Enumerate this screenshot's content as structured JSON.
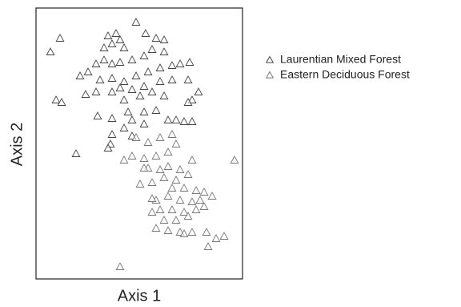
{
  "chart_data": {
    "type": "scatter",
    "xlabel": "Axis 1",
    "ylabel": "Axis 2",
    "xlim": [
      0,
      258
    ],
    "ylim": [
      0,
      338
    ],
    "legend": "right",
    "series": [
      {
        "name": "Laurentian Mixed Forest",
        "color": "#444444",
        "x": [
          125,
          30,
          18,
          90,
          100,
          105,
          95,
          85,
          110,
          137,
          150,
          160,
          160,
          145,
          135,
          120,
          105,
          95,
          85,
          75,
          65,
          55,
          80,
          95,
          110,
          125,
          140,
          155,
          170,
          180,
          192,
          190,
          170,
          155,
          135,
          120,
          105,
          95,
          75,
          62,
          25,
          32,
          110,
          130,
          145,
          160,
          195,
          203,
          190,
          115,
          135,
          150,
          165,
          175,
          185,
          195,
          77,
          95,
          120,
          135,
          110,
          120,
          95,
          50,
          93,
          90
        ],
        "values": [
          320,
          300,
          283,
          303,
          306,
          298,
          293,
          288,
          288,
          306,
          300,
          298,
          283,
          286,
          278,
          273,
          270,
          268,
          273,
          268,
          258,
          253,
          248,
          250,
          246,
          253,
          258,
          263,
          266,
          268,
          270,
          248,
          248,
          246,
          240,
          236,
          238,
          233,
          233,
          230,
          223,
          220,
          223,
          228,
          233,
          228,
          223,
          233,
          220,
          208,
          208,
          210,
          198,
          198,
          196,
          196,
          203,
          200,
          198,
          193,
          188,
          178,
          180,
          156,
          168,
          163
        ]
      },
      {
        "name": "Eastern Deciduous Forest",
        "color": "#777777",
        "x": [
          125,
          140,
          155,
          170,
          175,
          165,
          150,
          135,
          120,
          110,
          140,
          155,
          165,
          180,
          190,
          175,
          160,
          145,
          170,
          185,
          200,
          210,
          220,
          205,
          195,
          180,
          165,
          150,
          155,
          170,
          185,
          200,
          190,
          175,
          160,
          150,
          165,
          180,
          195,
          213,
          225,
          235,
          215,
          185,
          145,
          130,
          195,
          210,
          248,
          105,
          135,
          145
        ],
        "values": [
          176,
          170,
          176,
          180,
          168,
          158,
          153,
          150,
          153,
          148,
          138,
          136,
          140,
          136,
          130,
          123,
          126,
          120,
          113,
          113,
          110,
          108,
          103,
          98,
          96,
          98,
          103,
          98,
          86,
          86,
          83,
          86,
          78,
          73,
          73,
          63,
          60,
          58,
          58,
          58,
          50,
          53,
          40,
          56,
          83,
          118,
          148,
          90,
          148,
          15,
          138,
          100
        ]
      }
    ]
  }
}
